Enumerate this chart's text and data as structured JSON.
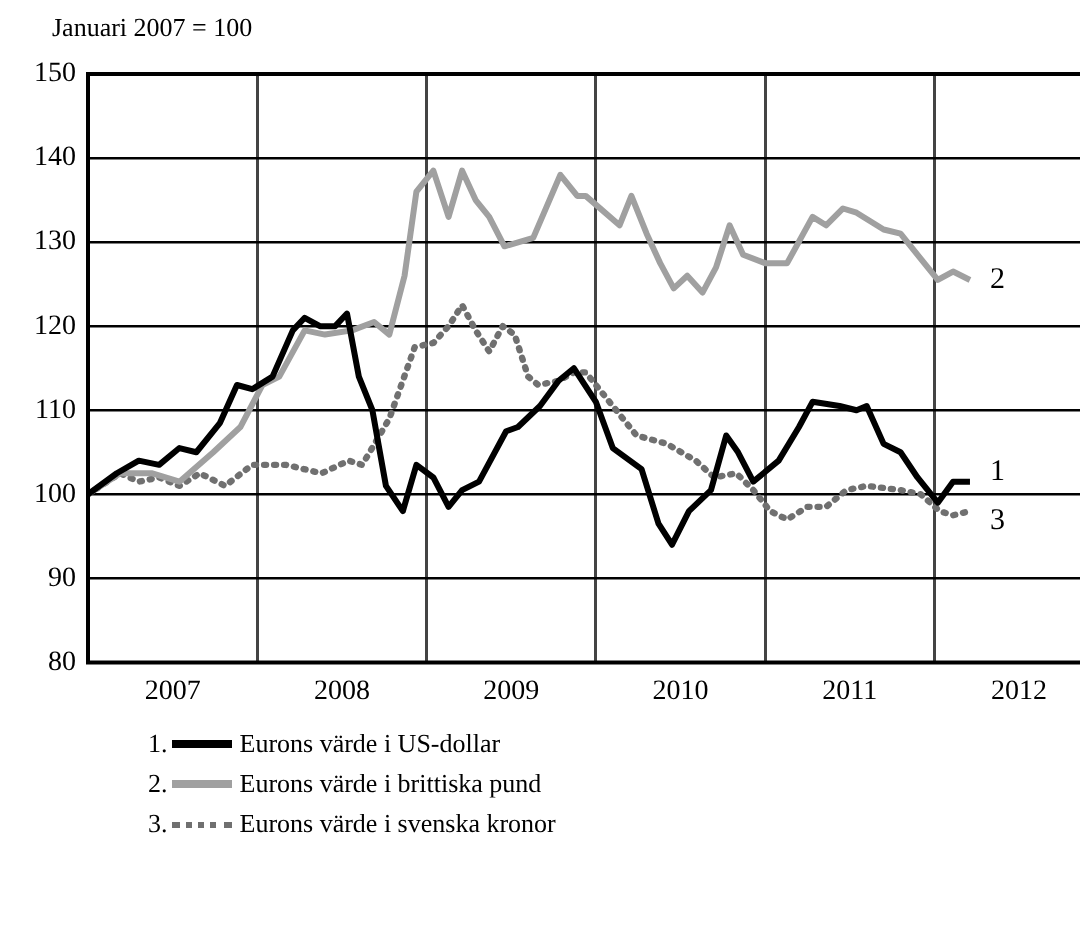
{
  "chart_data": {
    "type": "line",
    "ylabel": "Januari 2007 = 100",
    "xlim": [
      2007,
      2012.86
    ],
    "xticks": [
      {
        "value": 2007.5,
        "label": "2007"
      },
      {
        "value": 2008,
        "label": null
      },
      {
        "value": 2008.5,
        "label": "2008"
      },
      {
        "value": 2009,
        "label": null
      },
      {
        "value": 2009.5,
        "label": "2009"
      },
      {
        "value": 2010,
        "label": null
      },
      {
        "value": 2010.5,
        "label": "2010"
      },
      {
        "value": 2011,
        "label": null
      },
      {
        "value": 2011.5,
        "label": "2011"
      },
      {
        "value": 2012,
        "label": null
      },
      {
        "value": 2012.5,
        "label": "2012"
      }
    ],
    "ylim": [
      80,
      150
    ],
    "yticks": [
      80,
      90,
      100,
      110,
      120,
      130,
      140,
      150
    ],
    "grid": true,
    "legend": "bottom",
    "marker": "none",
    "series": [
      {
        "name": "Eurons värde i US-dollar",
        "color": "#000000",
        "line_style": "solid",
        "x": [
          2007.0,
          2007.17,
          2007.3,
          2007.42,
          2007.54,
          2007.64,
          2007.78,
          2007.88,
          2007.97,
          2008.09,
          2008.21,
          2008.28,
          2008.37,
          2008.46,
          2008.53,
          2008.6,
          2008.68,
          2008.76,
          2008.86,
          2008.94,
          2009.04,
          2009.13,
          2009.21,
          2009.31,
          2009.47,
          2009.54,
          2009.67,
          2009.78,
          2009.87,
          2010.0,
          2010.1,
          2010.27,
          2010.37,
          2010.45,
          2010.55,
          2010.68,
          2010.77,
          2010.84,
          2010.93,
          2011.08,
          2011.2,
          2011.28,
          2011.44,
          2011.54,
          2011.6,
          2011.7,
          2011.8,
          2011.9,
          2012.02,
          2012.11,
          2012.21
        ],
        "values": [
          100,
          102.5,
          104,
          103.5,
          105.5,
          105,
          108.5,
          113,
          112.5,
          114,
          119.5,
          121,
          120,
          120,
          121.5,
          114,
          110,
          101,
          98,
          103.5,
          102,
          98.5,
          100.5,
          101.5,
          107.5,
          108,
          110.5,
          113.5,
          115,
          111,
          105.5,
          103,
          96.5,
          94,
          98,
          100.5,
          107,
          105,
          101.5,
          104,
          108,
          111,
          110.5,
          110,
          110.5,
          106,
          105,
          102,
          99,
          101.5,
          101.5
        ]
      },
      {
        "name": "Eurons värde i brittiska pund",
        "color": "#a0a0a0",
        "line_style": "solid",
        "x": [
          2007.0,
          2007.19,
          2007.38,
          2007.54,
          2007.74,
          2007.9,
          2008.03,
          2008.13,
          2008.28,
          2008.4,
          2008.56,
          2008.69,
          2008.78,
          2008.87,
          2008.94,
          2009.04,
          2009.13,
          2009.21,
          2009.29,
          2009.37,
          2009.46,
          2009.63,
          2009.79,
          2009.89,
          2009.94,
          2010.14,
          2010.21,
          2010.3,
          2010.38,
          2010.46,
          2010.54,
          2010.63,
          2010.71,
          2010.79,
          2010.87,
          2011.0,
          2011.13,
          2011.28,
          2011.36,
          2011.46,
          2011.54,
          2011.7,
          2011.8,
          2012.02,
          2012.11,
          2012.21
        ],
        "values": [
          100,
          102.5,
          102.5,
          101.5,
          105,
          108,
          113,
          114,
          119.5,
          119,
          119.5,
          120.5,
          119,
          126,
          136,
          138.5,
          133,
          138.5,
          135,
          133,
          129.5,
          130.5,
          138,
          135.5,
          135.5,
          132,
          135.5,
          131,
          127.5,
          124.5,
          126,
          124,
          127,
          132,
          128.5,
          127.5,
          127.5,
          133,
          132,
          134,
          133.5,
          131.5,
          131,
          125.5,
          126.5,
          125.5
        ]
      },
      {
        "name": "Eurons värde i svenska kronor",
        "color": "#707070",
        "line_style": "dotted",
        "x": [
          2007.0,
          2007.19,
          2007.3,
          2007.42,
          2007.54,
          2007.66,
          2007.81,
          2007.97,
          2008.17,
          2008.38,
          2008.54,
          2008.62,
          2008.78,
          2008.93,
          2009.04,
          2009.13,
          2009.21,
          2009.29,
          2009.37,
          2009.45,
          2009.52,
          2009.6,
          2009.66,
          2009.78,
          2009.87,
          2009.94,
          2010.08,
          2010.24,
          2010.42,
          2010.59,
          2010.7,
          2010.83,
          2010.93,
          2011.03,
          2011.13,
          2011.25,
          2011.36,
          2011.48,
          2011.6,
          2011.8,
          2011.92,
          2012.03,
          2012.11,
          2012.21
        ],
        "values": [
          100,
          102.5,
          101.5,
          102,
          101,
          102.5,
          101,
          103.5,
          103.5,
          102.5,
          104,
          103.5,
          109,
          117.5,
          118,
          120,
          122.5,
          119.5,
          117,
          120,
          119,
          114,
          113,
          113.5,
          114.5,
          114.5,
          111,
          107,
          106,
          104,
          102,
          102.5,
          100.5,
          98,
          97,
          98.5,
          98.5,
          100.5,
          101,
          100.5,
          100,
          98,
          97.5,
          98
        ]
      }
    ],
    "annotations": [
      "1.",
      "2.",
      "3.",
      "1",
      "2",
      "3"
    ]
  }
}
